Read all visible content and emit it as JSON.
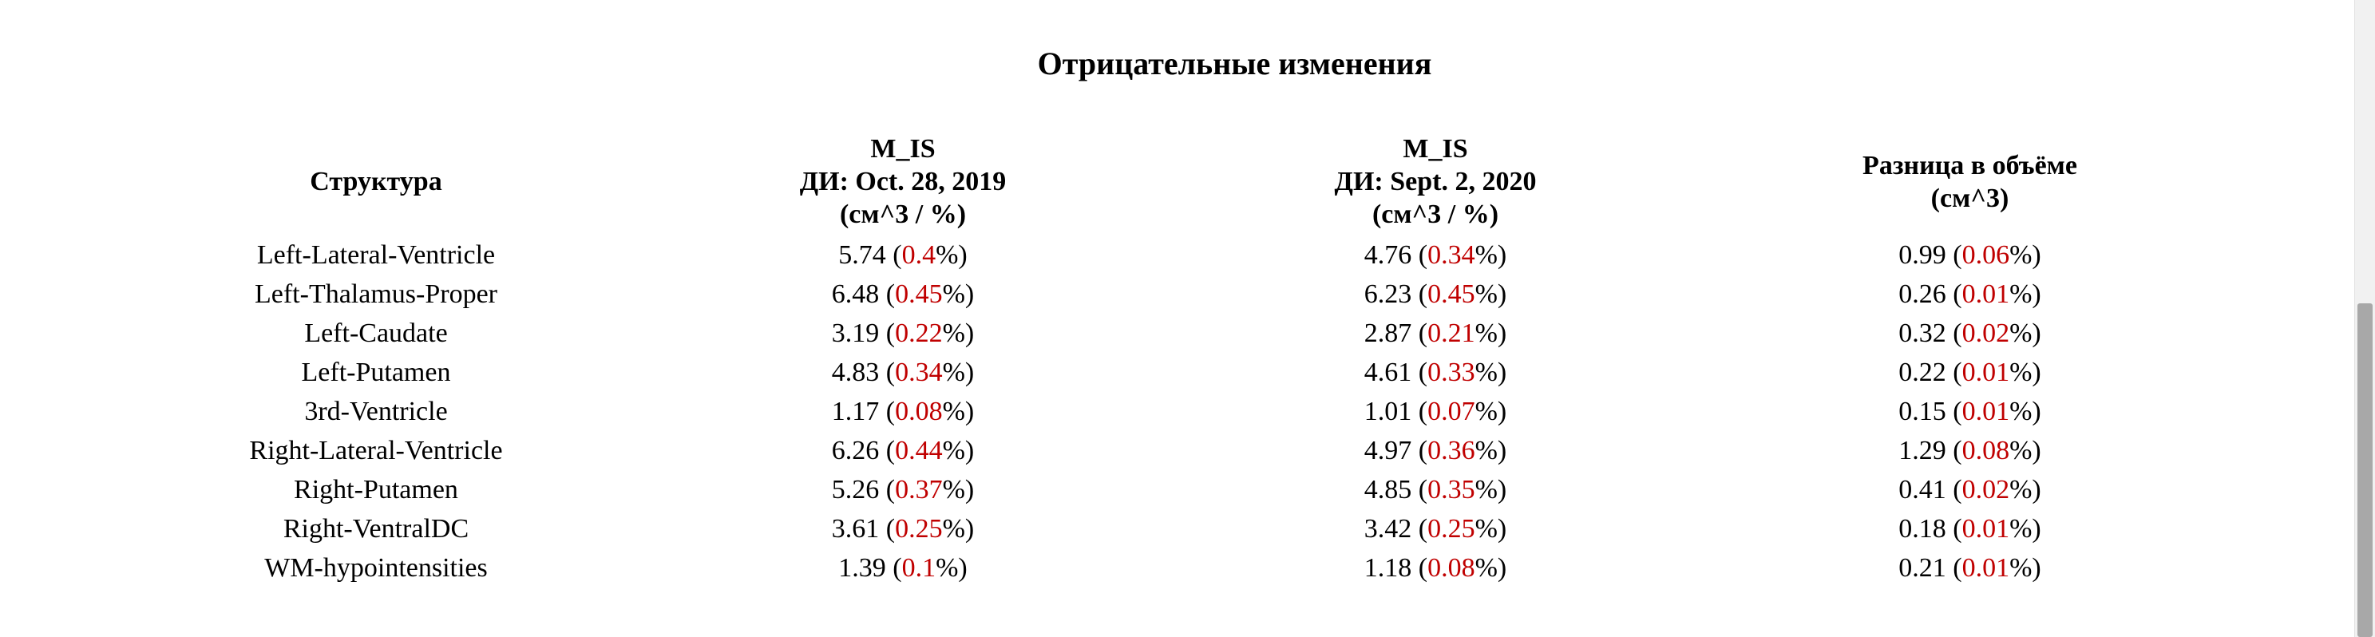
{
  "title": "Отрицательные изменения",
  "headers": {
    "structure": "Структура",
    "scan1": {
      "line1": "M_IS",
      "line2": "ДИ: Oct. 28, 2019",
      "line3": "(см^3 / %)"
    },
    "scan2": {
      "line1": "M_IS",
      "line2": "ДИ: Sept. 2, 2020",
      "line3": "(см^3 / %)"
    },
    "diff": {
      "line1": "Разница в объёме",
      "line2": "(см^3)"
    }
  },
  "rows": [
    {
      "name": "Left-Lateral-Ventricle",
      "v1": "5.74",
      "p1": "0.4",
      "v2": "4.76",
      "p2": "0.34",
      "d": "0.99",
      "dp": "0.06"
    },
    {
      "name": "Left-Thalamus-Proper",
      "v1": "6.48",
      "p1": "0.45",
      "v2": "6.23",
      "p2": "0.45",
      "d": "0.26",
      "dp": "0.01"
    },
    {
      "name": "Left-Caudate",
      "v1": "3.19",
      "p1": "0.22",
      "v2": "2.87",
      "p2": "0.21",
      "d": "0.32",
      "dp": "0.02"
    },
    {
      "name": "Left-Putamen",
      "v1": "4.83",
      "p1": "0.34",
      "v2": "4.61",
      "p2": "0.33",
      "d": "0.22",
      "dp": "0.01"
    },
    {
      "name": "3rd-Ventricle",
      "v1": "1.17",
      "p1": "0.08",
      "v2": "1.01",
      "p2": "0.07",
      "d": "0.15",
      "dp": "0.01"
    },
    {
      "name": "Right-Lateral-Ventricle",
      "v1": "6.26",
      "p1": "0.44",
      "v2": "4.97",
      "p2": "0.36",
      "d": "1.29",
      "dp": "0.08"
    },
    {
      "name": "Right-Putamen",
      "v1": "5.26",
      "p1": "0.37",
      "v2": "4.85",
      "p2": "0.35",
      "d": "0.41",
      "dp": "0.02"
    },
    {
      "name": "Right-VentralDC",
      "v1": "3.61",
      "p1": "0.25",
      "v2": "3.42",
      "p2": "0.25",
      "d": "0.18",
      "dp": "0.01"
    },
    {
      "name": "WM-hypointensities",
      "v1": "1.39",
      "p1": "0.1",
      "v2": "1.18",
      "p2": "0.08",
      "d": "0.21",
      "dp": "0.01"
    }
  ],
  "colors": {
    "percent": "#c00000",
    "text": "#000000",
    "background": "#ffffff"
  }
}
